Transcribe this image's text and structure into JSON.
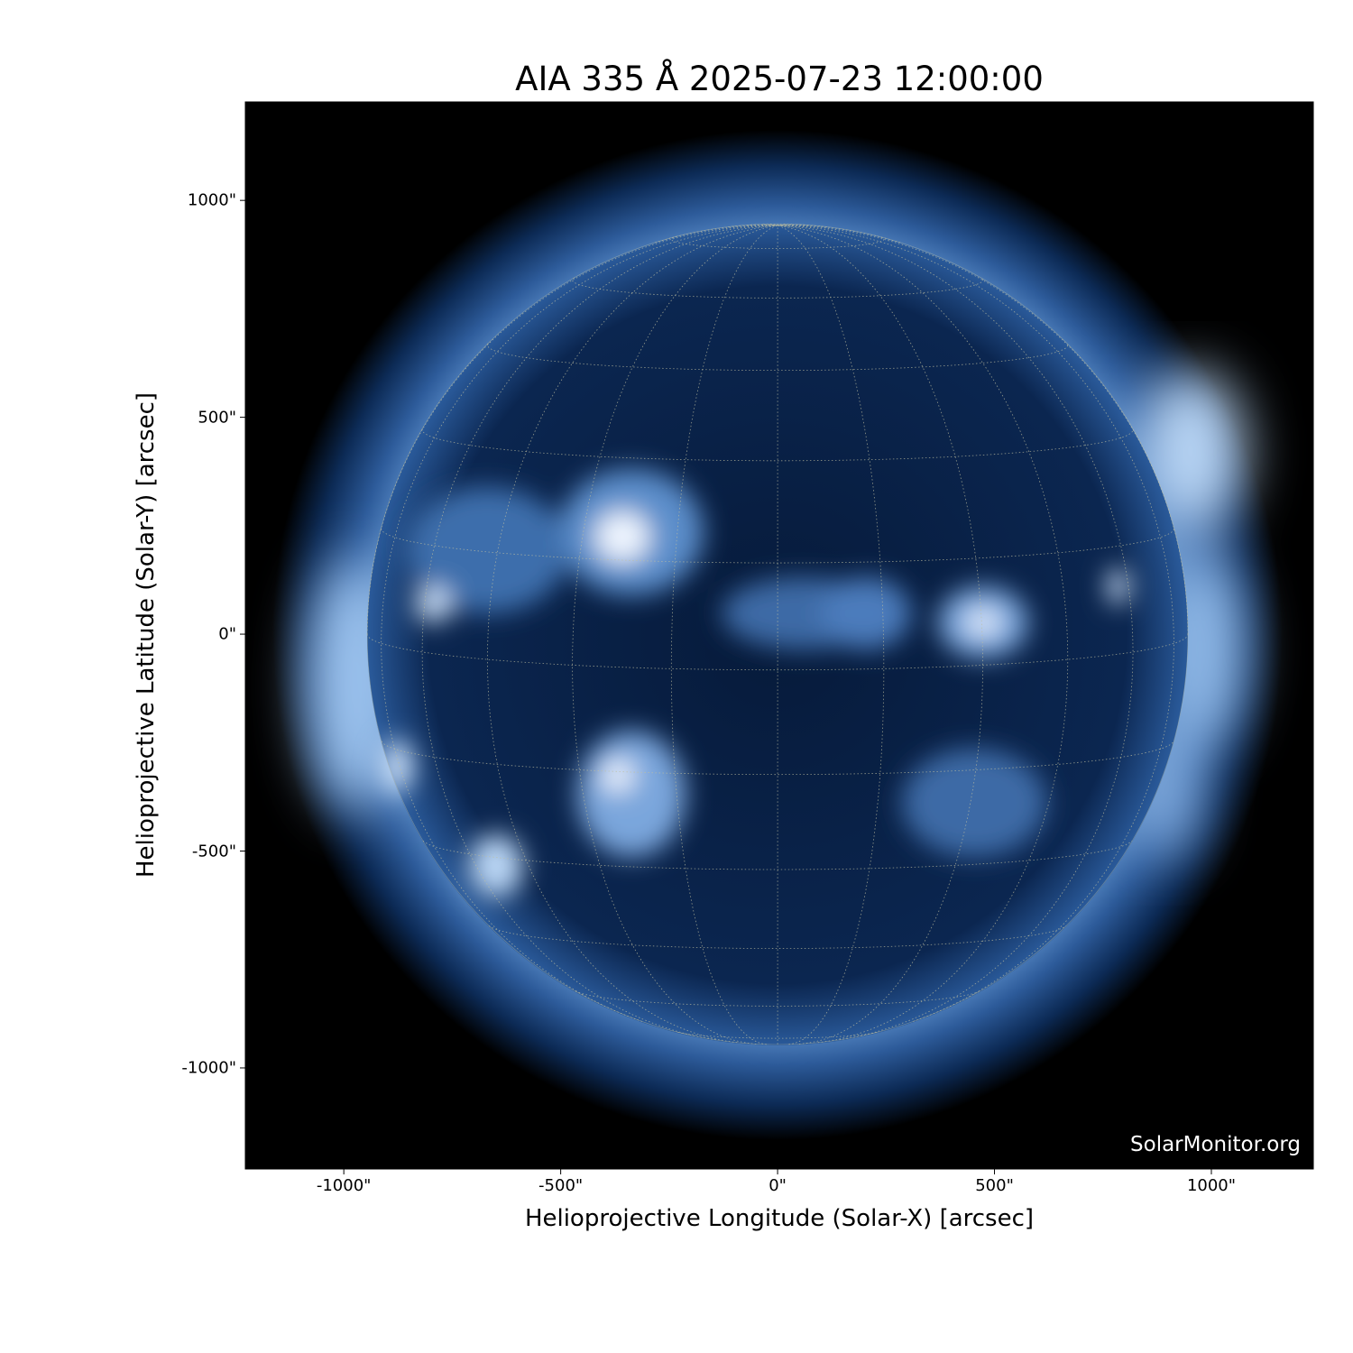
{
  "chart_data": {
    "type": "image",
    "title": "AIA 335 Å 2025-07-23 12:00:00",
    "xlabel": "Helioprojective Longitude (Solar-X) [arcsec]",
    "ylabel": "Helioprojective Latitude (Solar-Y) [arcsec]",
    "xlim": [
      -1227,
      1235
    ],
    "ylim": [
      -1233,
      1227
    ],
    "xticks": [
      {
        "v": -1000,
        "label": "-1000\""
      },
      {
        "v": -500,
        "label": "-500\""
      },
      {
        "v": 0,
        "label": "0\""
      },
      {
        "v": 500,
        "label": "500\""
      },
      {
        "v": 1000,
        "label": "1000\""
      }
    ],
    "yticks": [
      {
        "v": 1000,
        "label": "1000\""
      },
      {
        "v": 500,
        "label": "500\""
      },
      {
        "v": 0,
        "label": "0\""
      },
      {
        "v": -500,
        "label": "-500\""
      },
      {
        "v": -1000,
        "label": "-1000\""
      }
    ],
    "solar_radius_arcsec": 946,
    "grid_spacing_deg": 15,
    "colormap": "sdoaia335",
    "colors": {
      "background": "#000000",
      "disk": "#0a2550",
      "bright": "#e8f2ff",
      "grid": "#bfbfa0"
    }
  },
  "watermark": "SolarMonitor.org"
}
